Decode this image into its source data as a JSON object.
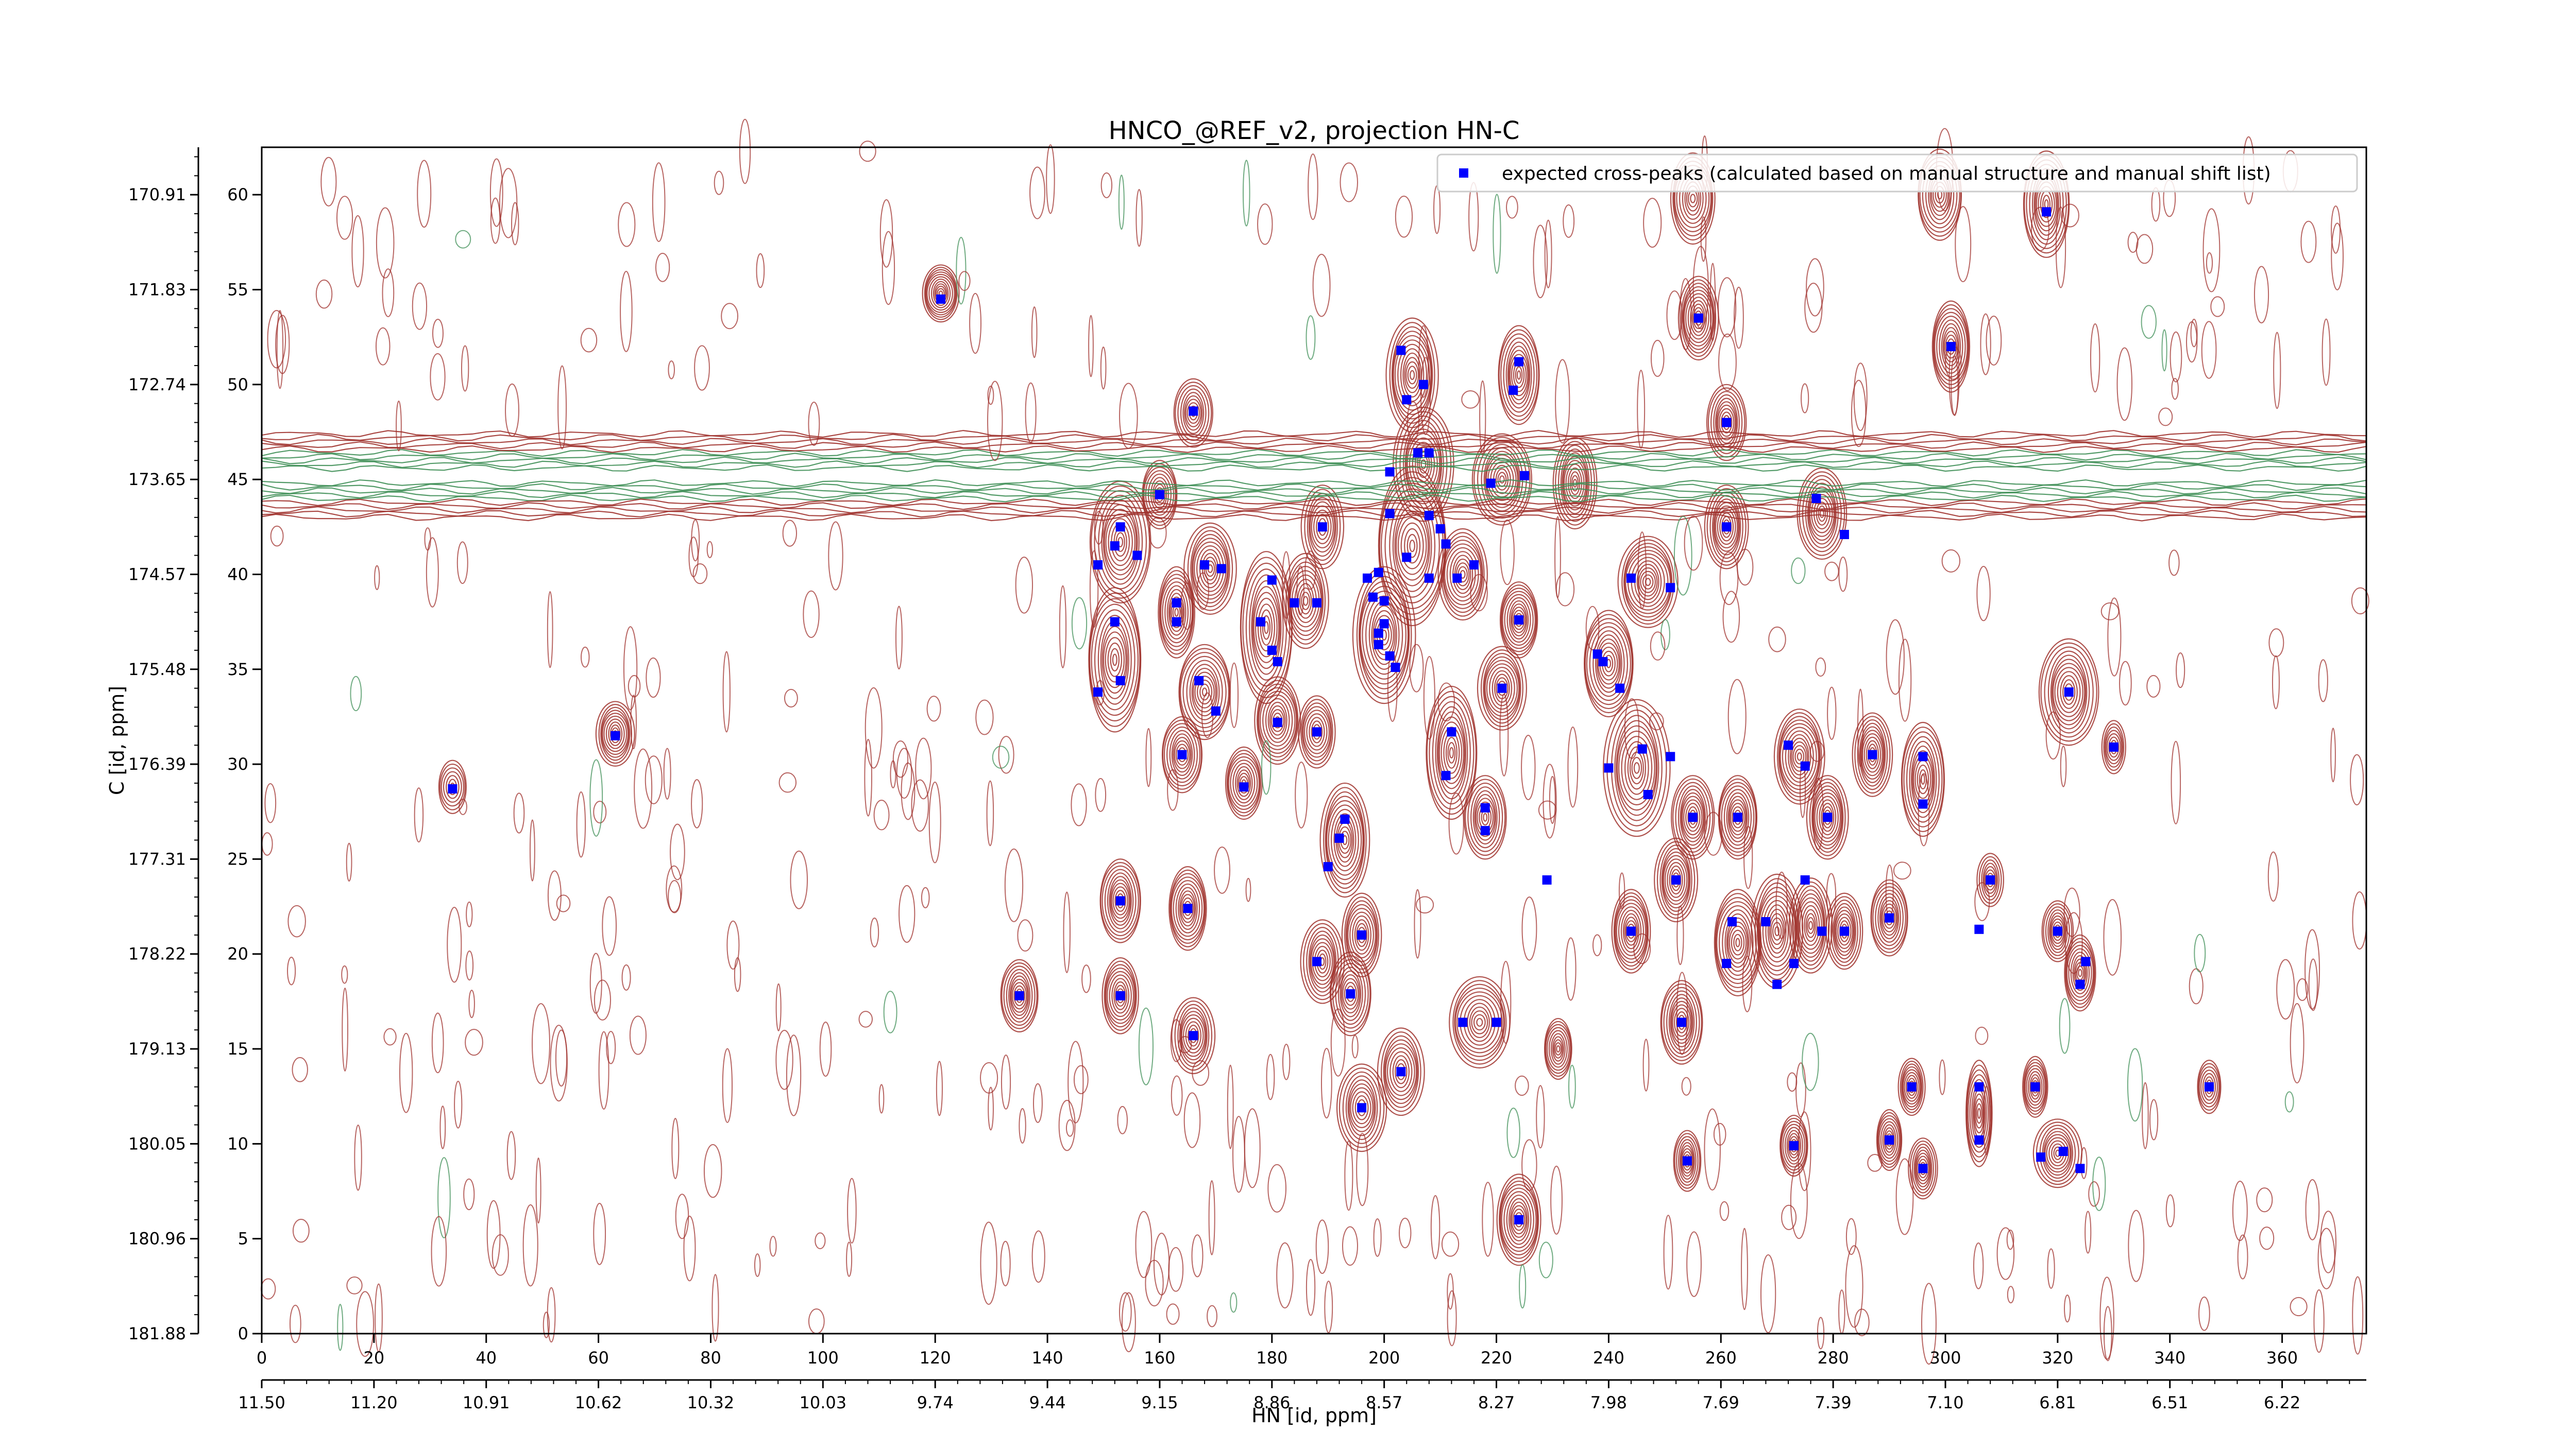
{
  "chart_data": {
    "type": "scatter",
    "title": "HNCO_@REF_v2, projection HN-C",
    "xlabel": "HN [id, ppm]",
    "ylabel": "C [id, ppm]",
    "xlim": [
      0,
      375
    ],
    "ylim": [
      0,
      62.5
    ],
    "x_ticks": [
      0,
      20,
      40,
      60,
      80,
      100,
      120,
      140,
      160,
      180,
      200,
      220,
      240,
      260,
      280,
      300,
      320,
      340,
      360
    ],
    "y_ticks": [
      0,
      5,
      10,
      15,
      20,
      25,
      30,
      35,
      40,
      45,
      50,
      55,
      60
    ],
    "x_secondary_ticks": [
      "11.50",
      "11.20",
      "10.91",
      "10.62",
      "10.32",
      "10.03",
      "9.74",
      "9.44",
      "9.15",
      "8.86",
      "8.57",
      "8.27",
      "7.98",
      "7.69",
      "7.39",
      "7.10",
      "6.81",
      "6.51",
      "6.22"
    ],
    "y_secondary_ticks": [
      "181.88",
      "180.96",
      "180.05",
      "179.13",
      "178.22",
      "177.31",
      "176.39",
      "175.48",
      "174.57",
      "173.65",
      "172.74",
      "171.83",
      "170.91"
    ],
    "grid": false,
    "legend_position": "top-right",
    "series": [
      {
        "name": "expected cross-peaks (calculated based on manual structure and manual shift list)",
        "color": "#0000ff",
        "marker": "square",
        "points": [
          [
            121,
            54.5
          ],
          [
            63,
            31.5
          ],
          [
            34,
            28.7
          ],
          [
            166,
            48.6
          ],
          [
            160,
            44.2
          ],
          [
            153,
            42.5
          ],
          [
            149,
            40.5
          ],
          [
            152,
            41.5
          ],
          [
            156,
            41.0
          ],
          [
            152,
            37.5
          ],
          [
            149,
            33.8
          ],
          [
            153,
            34.4
          ],
          [
            163,
            38.5
          ],
          [
            163,
            37.5
          ],
          [
            168,
            40.5
          ],
          [
            171,
            40.3
          ],
          [
            178,
            37.5
          ],
          [
            180,
            39.7
          ],
          [
            180,
            36.0
          ],
          [
            181,
            35.4
          ],
          [
            167,
            34.4
          ],
          [
            170,
            32.8
          ],
          [
            181,
            32.2
          ],
          [
            184,
            38.5
          ],
          [
            188,
            38.5
          ],
          [
            164,
            30.5
          ],
          [
            175,
            28.8
          ],
          [
            188,
            31.7
          ],
          [
            189,
            42.5
          ],
          [
            153,
            22.8
          ],
          [
            165,
            22.4
          ],
          [
            153,
            17.8
          ],
          [
            166,
            15.7
          ],
          [
            135,
            17.8
          ],
          [
            203,
            51.8
          ],
          [
            207,
            50.0
          ],
          [
            204,
            49.2
          ],
          [
            206,
            46.4
          ],
          [
            208,
            46.4
          ],
          [
            201,
            45.4
          ],
          [
            201,
            43.2
          ],
          [
            208,
            43.1
          ],
          [
            210,
            42.4
          ],
          [
            211,
            41.6
          ],
          [
            204,
            40.9
          ],
          [
            208,
            39.8
          ],
          [
            197,
            39.8
          ],
          [
            199,
            40.1
          ],
          [
            198,
            38.8
          ],
          [
            200,
            38.6
          ],
          [
            199,
            36.9
          ],
          [
            200,
            37.4
          ],
          [
            201,
            35.7
          ],
          [
            199,
            36.3
          ],
          [
            202,
            35.1
          ],
          [
            213,
            39.8
          ],
          [
            216,
            40.5
          ],
          [
            219,
            44.8
          ],
          [
            225,
            45.2
          ],
          [
            224,
            51.2
          ],
          [
            223,
            49.7
          ],
          [
            224,
            37.6
          ],
          [
            221,
            34.0
          ],
          [
            212,
            31.7
          ],
          [
            211,
            29.4
          ],
          [
            218,
            27.7
          ],
          [
            218,
            26.5
          ],
          [
            193,
            27.1
          ],
          [
            192,
            26.1
          ],
          [
            190,
            24.6
          ],
          [
            196,
            21.0
          ],
          [
            188,
            19.6
          ],
          [
            194,
            17.9
          ],
          [
            214,
            16.4
          ],
          [
            220,
            16.4
          ],
          [
            203,
            13.8
          ],
          [
            196,
            11.9
          ],
          [
            224,
            6.0
          ],
          [
            229,
            23.9
          ],
          [
            238,
            35.8
          ],
          [
            239,
            35.4
          ],
          [
            242,
            34.0
          ],
          [
            244,
            39.8
          ],
          [
            251,
            39.3
          ],
          [
            240,
            29.8
          ],
          [
            246,
            30.8
          ],
          [
            247,
            28.4
          ],
          [
            251,
            30.4
          ],
          [
            255,
            27.2
          ],
          [
            263,
            27.2
          ],
          [
            244,
            21.2
          ],
          [
            252,
            23.9
          ],
          [
            253,
            16.4
          ],
          [
            254,
            9.1
          ],
          [
            256,
            53.5
          ],
          [
            261,
            42.5
          ],
          [
            261,
            48.0
          ],
          [
            272,
            31.0
          ],
          [
            275,
            29.9
          ],
          [
            279,
            27.2
          ],
          [
            277,
            44.0
          ],
          [
            282,
            42.1
          ],
          [
            261,
            19.5
          ],
          [
            262,
            21.7
          ],
          [
            268,
            21.7
          ],
          [
            275,
            23.9
          ],
          [
            273,
            19.5
          ],
          [
            278,
            21.2
          ],
          [
            282,
            21.2
          ],
          [
            290,
            21.9
          ],
          [
            270,
            18.4
          ],
          [
            273,
            9.9
          ],
          [
            287,
            30.5
          ],
          [
            296,
            30.4
          ],
          [
            296,
            27.9
          ],
          [
            301,
            52.0
          ],
          [
            290,
            10.2
          ],
          [
            294,
            13.0
          ],
          [
            296,
            8.7
          ],
          [
            306,
            21.3
          ],
          [
            306,
            10.2
          ],
          [
            308,
            23.9
          ],
          [
            306,
            13.0
          ],
          [
            316,
            13.0
          ],
          [
            318,
            59.1
          ],
          [
            320,
            21.2
          ],
          [
            322,
            33.8
          ],
          [
            324,
            18.4
          ],
          [
            325,
            19.6
          ],
          [
            330,
            30.9
          ],
          [
            317,
            9.3
          ],
          [
            321,
            9.6
          ],
          [
            324,
            8.7
          ],
          [
            347,
            13.0
          ]
        ]
      }
    ],
    "contours": {
      "positive_color": "#a0322d",
      "negative_color": "#3f8f57",
      "levels": 12,
      "baseline_band": {
        "center": 45.0,
        "half_width": 2.0
      },
      "peaks": [
        [
          121,
          54.8,
          3.4,
          1.5,
          1.0
        ],
        [
          63,
          31.6,
          3.4,
          1.7,
          0.9
        ],
        [
          34,
          28.8,
          2.6,
          1.4,
          0.6
        ],
        [
          166,
          48.5,
          3.3,
          1.8,
          0.8
        ],
        [
          160,
          44.2,
          3.3,
          1.8,
          0.8
        ],
        [
          153,
          41.7,
          5.2,
          3.2,
          1.1
        ],
        [
          152,
          35.5,
          5.0,
          3.8,
          1.1
        ],
        [
          163,
          38.0,
          3.5,
          2.4,
          1.0
        ],
        [
          169,
          40.3,
          4.5,
          2.4,
          1.0
        ],
        [
          179,
          37.2,
          4.6,
          4.0,
          1.1
        ],
        [
          168,
          33.8,
          4.8,
          2.5,
          1.0
        ],
        [
          181,
          32.3,
          4.3,
          2.3,
          1.0
        ],
        [
          186,
          38.6,
          4.1,
          2.5,
          0.9
        ],
        [
          189,
          42.5,
          3.6,
          2.2,
          0.8
        ],
        [
          164,
          30.5,
          3.6,
          2.0,
          0.9
        ],
        [
          175,
          29.0,
          3.5,
          1.9,
          0.9
        ],
        [
          188,
          31.7,
          3.4,
          1.9,
          0.8
        ],
        [
          153,
          22.8,
          3.6,
          2.2,
          1.0
        ],
        [
          165,
          22.4,
          3.6,
          2.2,
          1.0
        ],
        [
          153,
          17.8,
          3.4,
          2.0,
          0.9
        ],
        [
          166,
          15.7,
          3.6,
          2.0,
          0.9
        ],
        [
          135,
          17.8,
          3.2,
          1.9,
          0.9
        ],
        [
          205,
          50.5,
          4.6,
          3.0,
          1.1
        ],
        [
          207,
          45.8,
          5.0,
          3.0,
          1.1
        ],
        [
          205,
          41.5,
          6.5,
          4.2,
          1.2
        ],
        [
          200,
          36.8,
          5.6,
          3.6,
          1.2
        ],
        [
          214,
          40.0,
          4.5,
          2.4,
          1.0
        ],
        [
          221,
          45.0,
          5.0,
          2.4,
          1.1
        ],
        [
          224,
          50.5,
          3.6,
          2.6,
          1.0
        ],
        [
          224,
          37.6,
          3.6,
          2.0,
          1.0
        ],
        [
          221,
          34.0,
          4.3,
          2.2,
          1.0
        ],
        [
          212,
          30.6,
          4.4,
          3.5,
          1.1
        ],
        [
          218,
          27.2,
          3.6,
          2.2,
          0.9
        ],
        [
          193,
          26.0,
          4.4,
          3.0,
          1.1
        ],
        [
          196,
          21.0,
          3.6,
          2.2,
          0.9
        ],
        [
          189,
          19.6,
          3.6,
          2.2,
          0.9
        ],
        [
          194,
          17.9,
          3.6,
          2.2,
          0.9
        ],
        [
          217,
          16.4,
          5.6,
          2.4,
          1.0
        ],
        [
          203,
          13.8,
          4.1,
          2.3,
          0.9
        ],
        [
          196,
          11.9,
          4.1,
          2.3,
          0.9
        ],
        [
          224,
          6.0,
          4.1,
          2.4,
          1.1
        ],
        [
          231,
          15.0,
          2.6,
          1.6,
          0.8
        ],
        [
          234,
          44.8,
          3.6,
          2.4,
          1.0
        ],
        [
          240,
          35.3,
          4.7,
          2.8,
          1.1
        ],
        [
          247,
          39.6,
          5.4,
          2.4,
          1.1
        ],
        [
          245,
          29.8,
          5.5,
          3.6,
          1.1
        ],
        [
          255,
          27.2,
          3.6,
          2.2,
          1.0
        ],
        [
          263,
          27.2,
          3.6,
          2.2,
          1.0
        ],
        [
          244,
          21.2,
          3.6,
          2.2,
          1.0
        ],
        [
          252,
          23.9,
          3.6,
          2.2,
          1.0
        ],
        [
          253,
          16.4,
          3.6,
          2.2,
          1.0
        ],
        [
          254,
          9.1,
          2.3,
          1.6,
          0.8
        ],
        [
          256,
          53.5,
          3.6,
          2.2,
          1.0
        ],
        [
          261,
          42.5,
          3.6,
          2.2,
          1.0
        ],
        [
          261,
          48.0,
          3.3,
          2.0,
          0.9
        ],
        [
          274,
          30.4,
          4.6,
          2.5,
          1.1
        ],
        [
          279,
          27.2,
          3.6,
          2.2,
          1.0
        ],
        [
          278,
          43.2,
          4.1,
          2.4,
          1.0
        ],
        [
          263,
          20.6,
          4.5,
          2.8,
          1.1
        ],
        [
          270,
          21.2,
          4.5,
          3.0,
          1.1
        ],
        [
          276,
          21.5,
          3.6,
          2.5,
          1.0
        ],
        [
          282,
          21.2,
          3.0,
          2.0,
          0.9
        ],
        [
          290,
          21.9,
          3.3,
          2.0,
          0.9
        ],
        [
          273,
          9.9,
          2.6,
          1.6,
          0.8
        ],
        [
          287,
          30.5,
          3.3,
          2.2,
          1.0
        ],
        [
          296,
          29.2,
          3.8,
          3.0,
          1.0
        ],
        [
          301,
          52.0,
          3.6,
          2.4,
          1.0
        ],
        [
          290,
          10.2,
          2.4,
          1.6,
          0.8
        ],
        [
          294,
          13.0,
          2.4,
          1.5,
          0.8
        ],
        [
          296,
          8.7,
          2.4,
          1.6,
          0.8
        ],
        [
          306,
          11.6,
          2.5,
          2.8,
          0.9
        ],
        [
          316,
          13.0,
          2.4,
          1.6,
          0.8
        ],
        [
          320,
          9.5,
          4.0,
          1.8,
          0.9
        ],
        [
          320,
          21.2,
          2.6,
          1.6,
          0.8
        ],
        [
          324,
          19.0,
          3.0,
          2.0,
          0.9
        ],
        [
          322,
          33.8,
          5.0,
          2.8,
          1.1
        ],
        [
          318,
          59.5,
          4.0,
          2.8,
          1.0
        ],
        [
          299,
          60.0,
          4.0,
          2.4,
          0.9
        ],
        [
          255,
          59.8,
          4.2,
          2.4,
          0.9
        ],
        [
          347,
          13.0,
          2.2,
          1.4,
          0.7
        ],
        [
          330,
          30.9,
          2.2,
          1.4,
          0.7
        ],
        [
          308,
          23.9,
          2.2,
          1.4,
          0.7
        ]
      ]
    }
  }
}
